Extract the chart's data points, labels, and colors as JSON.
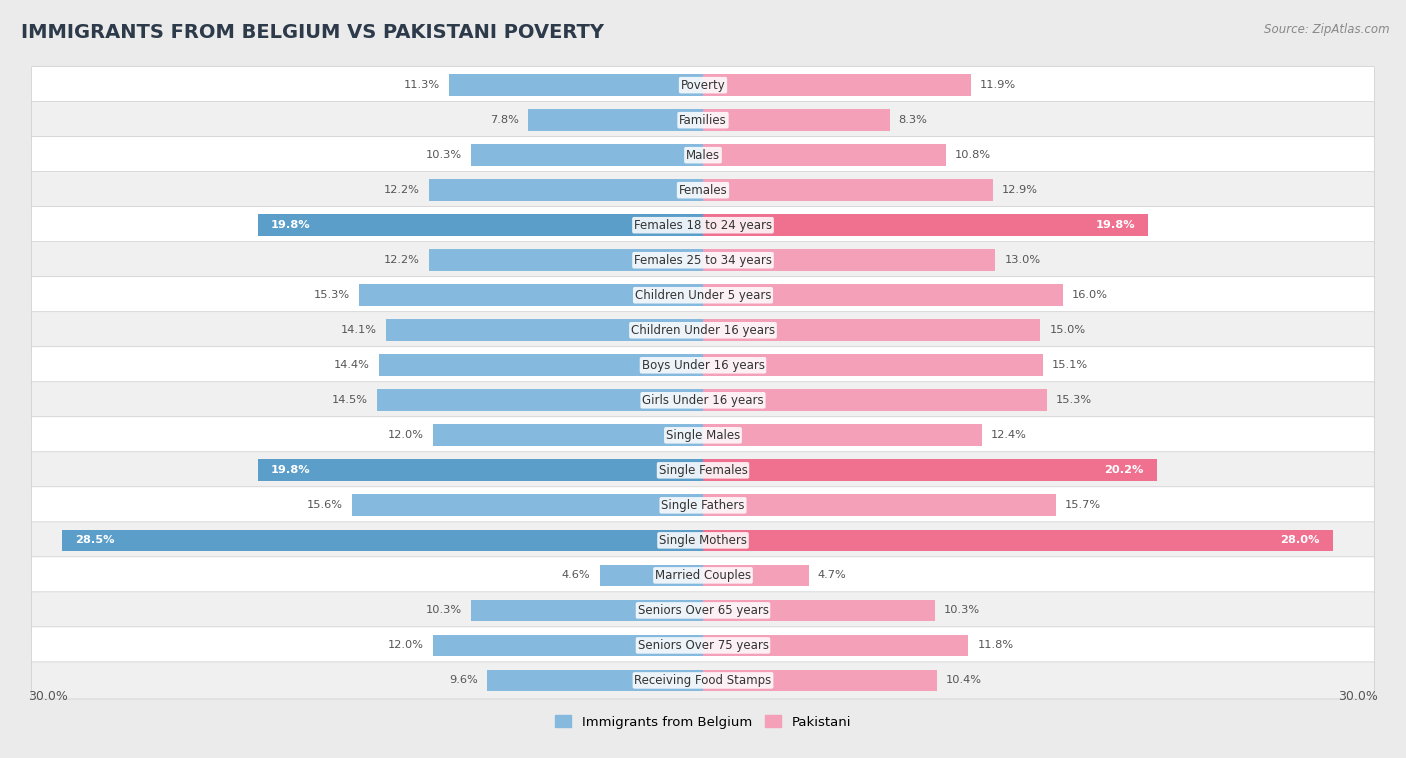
{
  "title": "IMMIGRANTS FROM BELGIUM VS PAKISTANI POVERTY",
  "source": "Source: ZipAtlas.com",
  "categories": [
    "Poverty",
    "Families",
    "Males",
    "Females",
    "Females 18 to 24 years",
    "Females 25 to 34 years",
    "Children Under 5 years",
    "Children Under 16 years",
    "Boys Under 16 years",
    "Girls Under 16 years",
    "Single Males",
    "Single Females",
    "Single Fathers",
    "Single Mothers",
    "Married Couples",
    "Seniors Over 65 years",
    "Seniors Over 75 years",
    "Receiving Food Stamps"
  ],
  "belgium_values": [
    11.3,
    7.8,
    10.3,
    12.2,
    19.8,
    12.2,
    15.3,
    14.1,
    14.4,
    14.5,
    12.0,
    19.8,
    15.6,
    28.5,
    4.6,
    10.3,
    12.0,
    9.6
  ],
  "pakistani_values": [
    11.9,
    8.3,
    10.8,
    12.9,
    19.8,
    13.0,
    16.0,
    15.0,
    15.1,
    15.3,
    12.4,
    20.2,
    15.7,
    28.0,
    4.7,
    10.3,
    11.8,
    10.4
  ],
  "belgium_color": "#85b9de",
  "pakistani_color": "#f4a0b8",
  "belgium_highlight_color": "#5b9ec9",
  "pakistani_highlight_color": "#f07090",
  "highlight_indices": [
    4,
    11,
    13
  ],
  "xlim": 30.0,
  "bar_height": 0.62,
  "background_color": "#ebebeb",
  "row_bg_color": "#ffffff",
  "row_alt_bg_color": "#f0f0f0",
  "legend_labels": [
    "Immigrants from Belgium",
    "Pakistani"
  ],
  "title_fontsize": 14,
  "label_fontsize": 8.5,
  "value_fontsize": 8.2,
  "source_fontsize": 8.5
}
